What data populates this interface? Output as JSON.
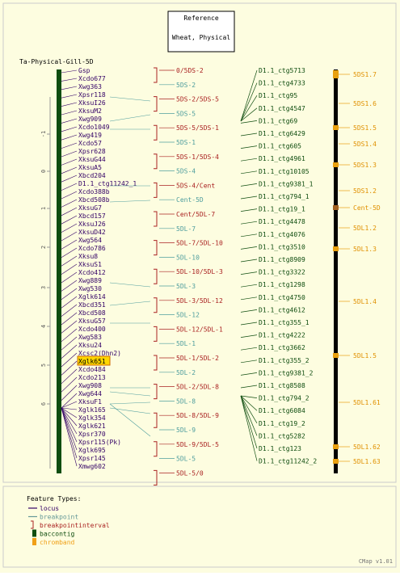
{
  "header": {
    "line1": "Reference",
    "line2": "Wheat, Physical"
  },
  "map_title": "Ta-Physical-Gill-5D",
  "axis": {
    "ticks": [
      "-1",
      "0",
      "1",
      "2",
      "3",
      "4",
      "5",
      "6"
    ]
  },
  "loci": [
    {
      "label": "Gsp"
    },
    {
      "label": "Xcdo677"
    },
    {
      "label": "Xwg363"
    },
    {
      "label": "Xpsr118"
    },
    {
      "label": "XksuI26"
    },
    {
      "label": "XksuM2"
    },
    {
      "label": "Xwg909"
    },
    {
      "label": "Xcdo1049"
    },
    {
      "label": "Xwg419"
    },
    {
      "label": "Xcdo57"
    },
    {
      "label": "Xpsr628"
    },
    {
      "label": "XksuG44"
    },
    {
      "label": "XksuA5"
    },
    {
      "label": "Xbcd204"
    },
    {
      "label": "D1.1_ctg11242_1"
    },
    {
      "label": "Xcdo388b"
    },
    {
      "label": "Xbcd508b"
    },
    {
      "label": "XksuG7"
    },
    {
      "label": "Xbcd157"
    },
    {
      "label": "XksuJ26"
    },
    {
      "label": "XksuD42"
    },
    {
      "label": "Xwg564"
    },
    {
      "label": "Xcdo786"
    },
    {
      "label": "Xksu8"
    },
    {
      "label": "XksuS1"
    },
    {
      "label": "Xcdo412"
    },
    {
      "label": "Xwg889"
    },
    {
      "label": "Xwg530"
    },
    {
      "label": "Xglk614"
    },
    {
      "label": "Xbcd351"
    },
    {
      "label": "Xbcd508"
    },
    {
      "label": "XksuG57"
    },
    {
      "label": "Xcdo400"
    },
    {
      "label": "Xwg583"
    },
    {
      "label": "Xksu24"
    },
    {
      "label": "Xcsc2(Dhn2)"
    },
    {
      "label": "Xglk651",
      "highlight": true
    },
    {
      "label": "Xcdo484"
    },
    {
      "label": "Xcdo213"
    },
    {
      "label": "Xwg908"
    },
    {
      "label": "Xwg644"
    },
    {
      "label": "XksuF1"
    },
    {
      "label": "Xglk165"
    },
    {
      "label": "Xglk354"
    },
    {
      "label": "Xglk621"
    },
    {
      "label": "Xpsr370"
    },
    {
      "label": "Xpsr115(Pk)"
    },
    {
      "label": "Xglk695"
    },
    {
      "label": "Xpsr145"
    },
    {
      "label": "Xmwg602"
    }
  ],
  "breakpoints": [
    {
      "label": "0/5DS-2",
      "type": "interval"
    },
    {
      "label": "5DS-2",
      "type": "point"
    },
    {
      "label": "5DS-2/5DS-5",
      "type": "interval"
    },
    {
      "label": "5DS-5",
      "type": "point"
    },
    {
      "label": "5DS-5/5DS-1",
      "type": "interval"
    },
    {
      "label": "5DS-1",
      "type": "point"
    },
    {
      "label": "5DS-1/5DS-4",
      "type": "interval"
    },
    {
      "label": "5DS-4",
      "type": "point"
    },
    {
      "label": "5DS-4/Cent",
      "type": "interval"
    },
    {
      "label": "Cent-5D",
      "type": "point"
    },
    {
      "label": "Cent/5DL-7",
      "type": "interval"
    },
    {
      "label": "5DL-7",
      "type": "point"
    },
    {
      "label": "5DL-7/5DL-10",
      "type": "interval"
    },
    {
      "label": "5DL-10",
      "type": "point"
    },
    {
      "label": "5DL-10/5DL-3",
      "type": "interval"
    },
    {
      "label": "5DL-3",
      "type": "point"
    },
    {
      "label": "5DL-3/5DL-12",
      "type": "interval"
    },
    {
      "label": "5DL-12",
      "type": "point"
    },
    {
      "label": "5DL-12/5DL-1",
      "type": "interval"
    },
    {
      "label": "5DL-1",
      "type": "point"
    },
    {
      "label": "5DL-1/5DL-2",
      "type": "interval"
    },
    {
      "label": "5DL-2",
      "type": "point"
    },
    {
      "label": "5DL-2/5DL-8",
      "type": "interval"
    },
    {
      "label": "5DL-8",
      "type": "point"
    },
    {
      "label": "5DL-8/5DL-9",
      "type": "interval"
    },
    {
      "label": "5DL-9",
      "type": "point"
    },
    {
      "label": "5DL-9/5DL-5",
      "type": "interval"
    },
    {
      "label": "5DL-5",
      "type": "point"
    },
    {
      "label": "5DL-5/0",
      "type": "interval"
    }
  ],
  "contigs": [
    "D1.1_ctg5713",
    "D1.1_ctg4733",
    "D1.1_ctg95",
    "D1.1_ctg4547",
    "D1.1_ctg69",
    "D1.1_ctg6429",
    "D1.1_ctg605",
    "D1.1_ctg4961",
    "D1.1_ctg10105",
    "D1.1_ctg9381_1",
    "D1.1_ctg794_1",
    "D1.1_ctg19_1",
    "D1.1_ctg4478",
    "D1.1_ctg4076",
    "D1.1_ctg3510",
    "D1.1_ctg8909",
    "D1.1_ctg3322",
    "D1.1_ctg1298",
    "D1.1_ctg4750",
    "D1.1_ctg4612",
    "D1.1_ctg355_1",
    "D1.1_ctg4222",
    "D1.1_ctg3662",
    "D1.1_ctg355_2",
    "D1.1_ctg9381_2",
    "D1.1_ctg8508",
    "D1.1_ctg794_2",
    "D1.1_ctg6084",
    "D1.1_ctg19_2",
    "D1.1_ctg5282",
    "D1.1_ctg123",
    "D1.1_ctg11242_2"
  ],
  "chrombands": [
    {
      "label": "5DS1.7",
      "band": true
    },
    {
      "label": "5DS1.6",
      "band": false
    },
    {
      "label": "5DS1.5",
      "band": true
    },
    {
      "label": "5DS1.4",
      "band": false
    },
    {
      "label": "5DS1.3",
      "band": true
    },
    {
      "label": "5DS1.2",
      "band": false
    },
    {
      "label": "Cent-5D",
      "band": true,
      "centromere": true
    },
    {
      "label": "5DL1.2",
      "band": false
    },
    {
      "label": "5DL1.3",
      "band": true
    },
    {
      "label": "5DL1.4",
      "band": false
    },
    {
      "label": "5DL1.5",
      "band": true
    },
    {
      "label": "5DL1.61",
      "band": false
    },
    {
      "label": "5DL1.62",
      "band": true
    },
    {
      "label": "5DL1.63",
      "band": true
    }
  ],
  "legend": {
    "title": "Feature Types:",
    "items": [
      {
        "label": "locus",
        "kind": "line",
        "color": "#330066"
      },
      {
        "label": "breakpoint",
        "kind": "line",
        "color": "#669999"
      },
      {
        "label": "breakpointinterval",
        "kind": "bracket",
        "color": "#aa2222"
      },
      {
        "label": "baccontig",
        "kind": "box",
        "color": "#0f4d0f"
      },
      {
        "label": "chromband",
        "kind": "box",
        "color": "#f0a018"
      }
    ]
  },
  "footer": "CMap v1.01",
  "colors": {
    "background": "#fdfde0",
    "locus": "#330066",
    "breakpoint": "#4f9e9e",
    "interval": "#aa2222",
    "contig": "#0f4d0f",
    "chromband": "#e8a010",
    "chromband_label": "#e09000",
    "map_bar": "#0f4d0f",
    "centromere": "#a06020"
  }
}
